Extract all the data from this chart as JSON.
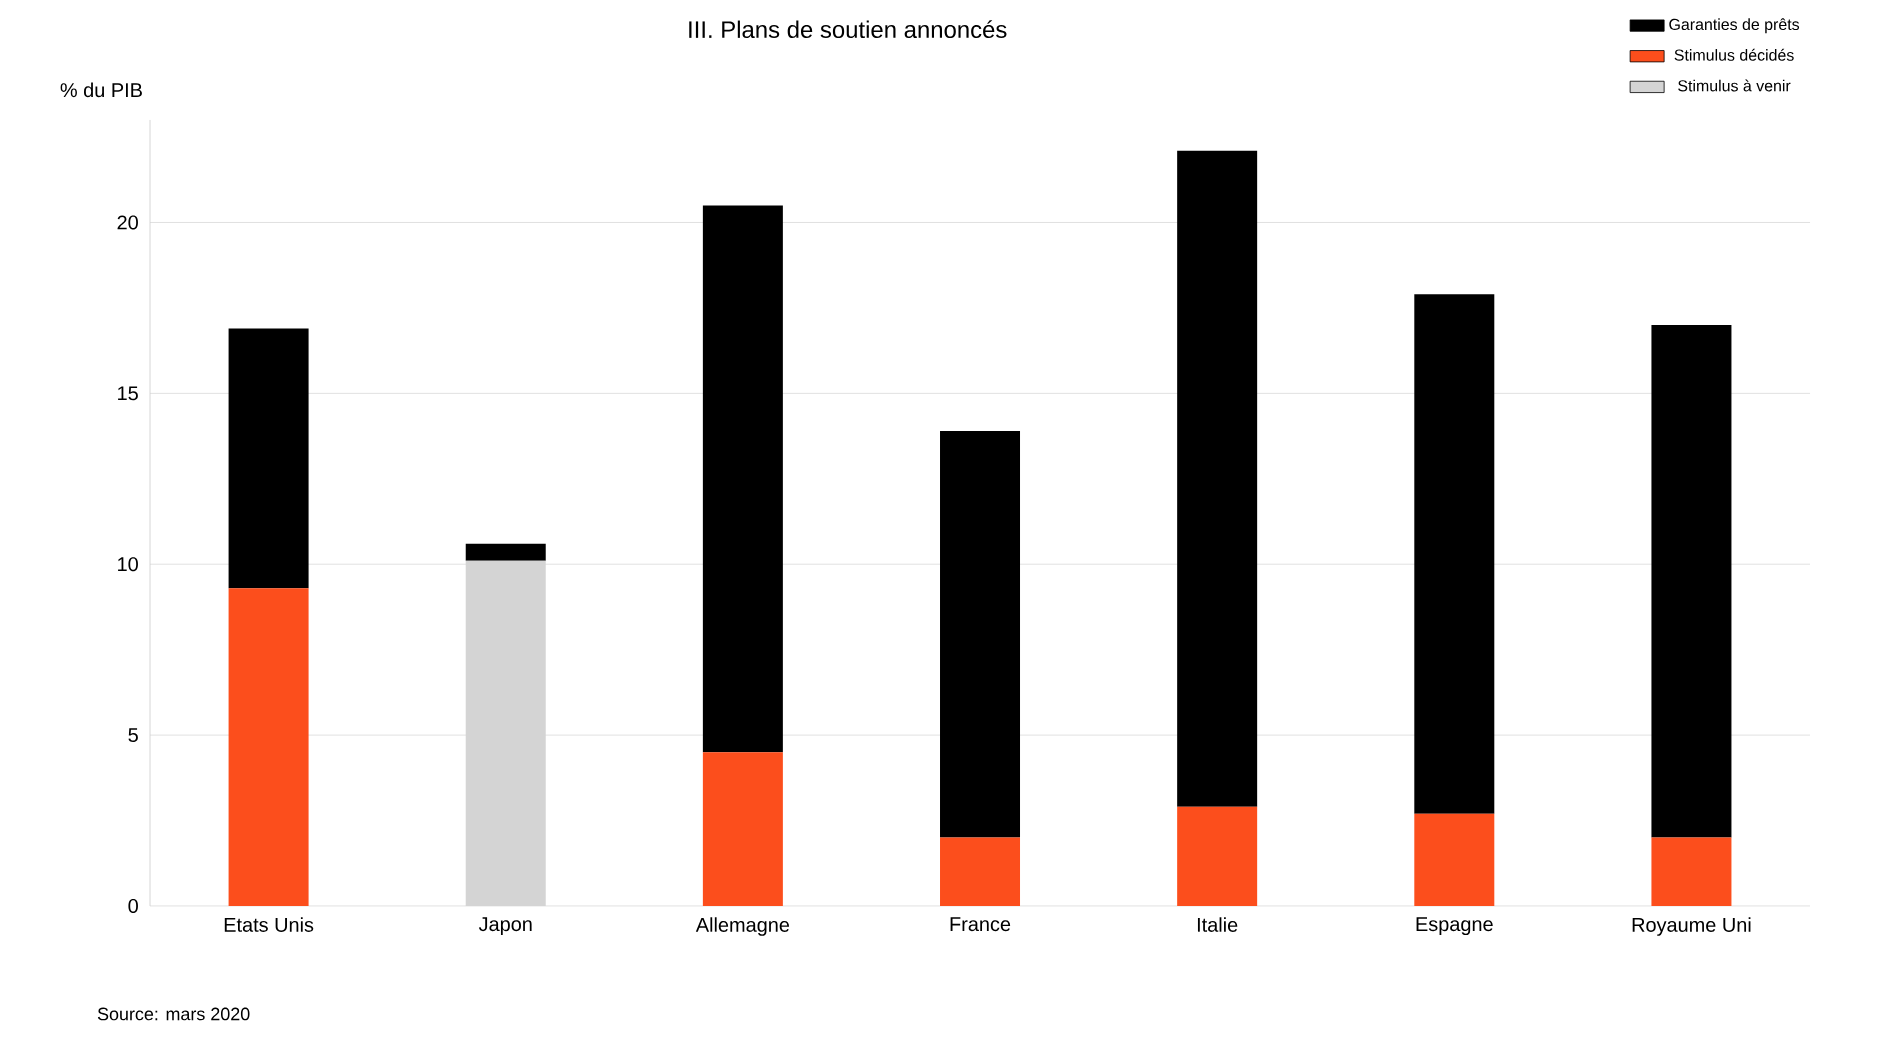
{
  "chart_data": {
    "type": "bar",
    "title": "III. Plans de soutien annoncés",
    "ylabel": "% du PIB",
    "categories": [
      "Etats Unis",
      "Japon",
      "Allemagne",
      "France",
      "Italie",
      "Espagne",
      "Royaume Uni"
    ],
    "stacked": true,
    "series": [
      {
        "name": "Stimulus à venir",
        "color": "#d4d4d4",
        "values": [
          null,
          10.1,
          null,
          null,
          null,
          null,
          null
        ]
      },
      {
        "name": "Stimulus décidés",
        "color": "#fc4e1c",
        "values": [
          9.3,
          null,
          4.5,
          2.0,
          2.9,
          2.7,
          2.0
        ]
      },
      {
        "name": "Garanties de prêts",
        "color": "#000000",
        "values": [
          7.6,
          0.5,
          16.0,
          11.9,
          19.2,
          15.2,
          15.0
        ]
      }
    ],
    "ylim": [
      0,
      23
    ],
    "yticks": [
      0,
      5,
      10,
      15,
      20
    ],
    "grid": "y",
    "legend": "top right",
    "annotations": [
      "Source: mars 2020"
    ]
  }
}
